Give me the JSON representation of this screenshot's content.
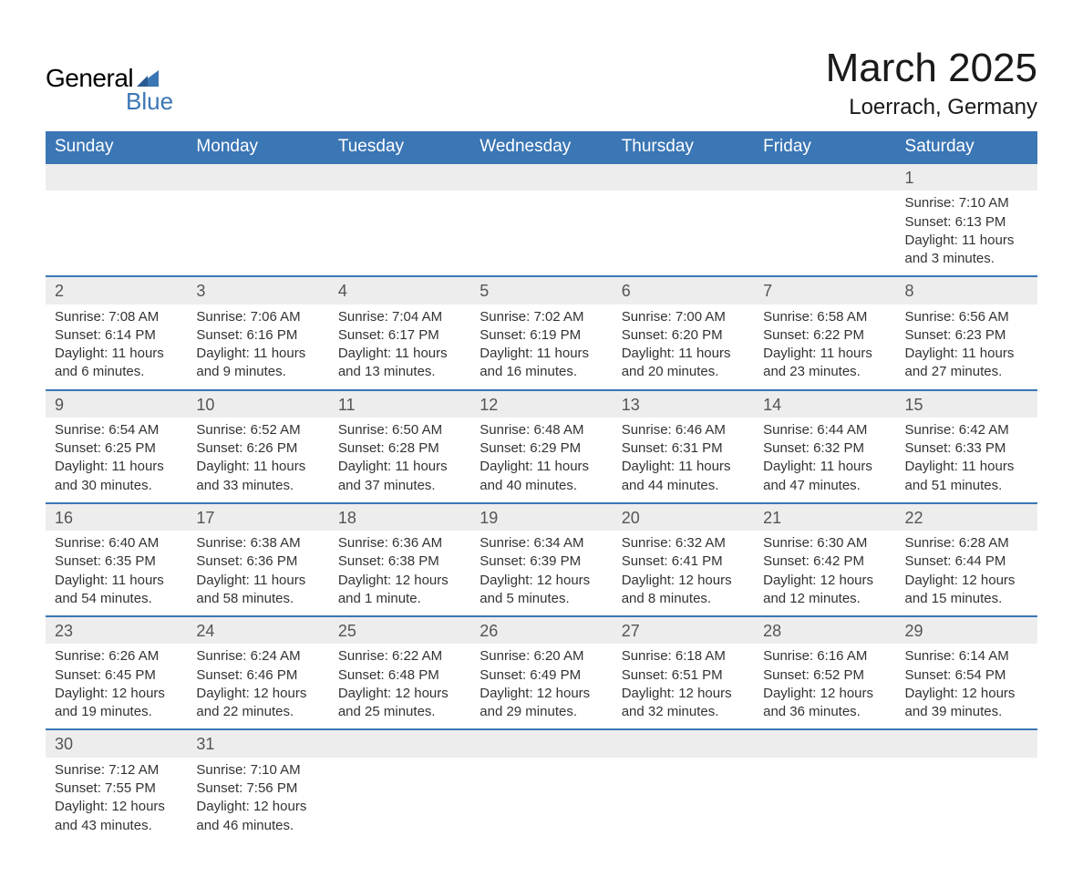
{
  "logo": {
    "general": "General",
    "blue": "Blue",
    "flag_color": "#3b76b5"
  },
  "title": "March 2025",
  "location": "Loerrach, Germany",
  "colors": {
    "header_bg": "#3b76b5",
    "header_text": "#ffffff",
    "daynum_bg": "#ededed",
    "row_border": "#3b76b5",
    "body_text": "#333333"
  },
  "layout": {
    "columns": 7,
    "day_fontsize": 18,
    "detail_fontsize": 15,
    "header_fontsize": 19,
    "title_fontsize": 44,
    "location_fontsize": 24
  },
  "weekdays": [
    "Sunday",
    "Monday",
    "Tuesday",
    "Wednesday",
    "Thursday",
    "Friday",
    "Saturday"
  ],
  "labels": {
    "sunrise": "Sunrise:",
    "sunset": "Sunset:",
    "daylight": "Daylight:"
  },
  "weeks": [
    [
      null,
      null,
      null,
      null,
      null,
      null,
      {
        "n": "1",
        "sr": "7:10 AM",
        "ss": "6:13 PM",
        "dl": "11 hours and 3 minutes."
      }
    ],
    [
      {
        "n": "2",
        "sr": "7:08 AM",
        "ss": "6:14 PM",
        "dl": "11 hours and 6 minutes."
      },
      {
        "n": "3",
        "sr": "7:06 AM",
        "ss": "6:16 PM",
        "dl": "11 hours and 9 minutes."
      },
      {
        "n": "4",
        "sr": "7:04 AM",
        "ss": "6:17 PM",
        "dl": "11 hours and 13 minutes."
      },
      {
        "n": "5",
        "sr": "7:02 AM",
        "ss": "6:19 PM",
        "dl": "11 hours and 16 minutes."
      },
      {
        "n": "6",
        "sr": "7:00 AM",
        "ss": "6:20 PM",
        "dl": "11 hours and 20 minutes."
      },
      {
        "n": "7",
        "sr": "6:58 AM",
        "ss": "6:22 PM",
        "dl": "11 hours and 23 minutes."
      },
      {
        "n": "8",
        "sr": "6:56 AM",
        "ss": "6:23 PM",
        "dl": "11 hours and 27 minutes."
      }
    ],
    [
      {
        "n": "9",
        "sr": "6:54 AM",
        "ss": "6:25 PM",
        "dl": "11 hours and 30 minutes."
      },
      {
        "n": "10",
        "sr": "6:52 AM",
        "ss": "6:26 PM",
        "dl": "11 hours and 33 minutes."
      },
      {
        "n": "11",
        "sr": "6:50 AM",
        "ss": "6:28 PM",
        "dl": "11 hours and 37 minutes."
      },
      {
        "n": "12",
        "sr": "6:48 AM",
        "ss": "6:29 PM",
        "dl": "11 hours and 40 minutes."
      },
      {
        "n": "13",
        "sr": "6:46 AM",
        "ss": "6:31 PM",
        "dl": "11 hours and 44 minutes."
      },
      {
        "n": "14",
        "sr": "6:44 AM",
        "ss": "6:32 PM",
        "dl": "11 hours and 47 minutes."
      },
      {
        "n": "15",
        "sr": "6:42 AM",
        "ss": "6:33 PM",
        "dl": "11 hours and 51 minutes."
      }
    ],
    [
      {
        "n": "16",
        "sr": "6:40 AM",
        "ss": "6:35 PM",
        "dl": "11 hours and 54 minutes."
      },
      {
        "n": "17",
        "sr": "6:38 AM",
        "ss": "6:36 PM",
        "dl": "11 hours and 58 minutes."
      },
      {
        "n": "18",
        "sr": "6:36 AM",
        "ss": "6:38 PM",
        "dl": "12 hours and 1 minute."
      },
      {
        "n": "19",
        "sr": "6:34 AM",
        "ss": "6:39 PM",
        "dl": "12 hours and 5 minutes."
      },
      {
        "n": "20",
        "sr": "6:32 AM",
        "ss": "6:41 PM",
        "dl": "12 hours and 8 minutes."
      },
      {
        "n": "21",
        "sr": "6:30 AM",
        "ss": "6:42 PM",
        "dl": "12 hours and 12 minutes."
      },
      {
        "n": "22",
        "sr": "6:28 AM",
        "ss": "6:44 PM",
        "dl": "12 hours and 15 minutes."
      }
    ],
    [
      {
        "n": "23",
        "sr": "6:26 AM",
        "ss": "6:45 PM",
        "dl": "12 hours and 19 minutes."
      },
      {
        "n": "24",
        "sr": "6:24 AM",
        "ss": "6:46 PM",
        "dl": "12 hours and 22 minutes."
      },
      {
        "n": "25",
        "sr": "6:22 AM",
        "ss": "6:48 PM",
        "dl": "12 hours and 25 minutes."
      },
      {
        "n": "26",
        "sr": "6:20 AM",
        "ss": "6:49 PM",
        "dl": "12 hours and 29 minutes."
      },
      {
        "n": "27",
        "sr": "6:18 AM",
        "ss": "6:51 PM",
        "dl": "12 hours and 32 minutes."
      },
      {
        "n": "28",
        "sr": "6:16 AM",
        "ss": "6:52 PM",
        "dl": "12 hours and 36 minutes."
      },
      {
        "n": "29",
        "sr": "6:14 AM",
        "ss": "6:54 PM",
        "dl": "12 hours and 39 minutes."
      }
    ],
    [
      {
        "n": "30",
        "sr": "7:12 AM",
        "ss": "7:55 PM",
        "dl": "12 hours and 43 minutes."
      },
      {
        "n": "31",
        "sr": "7:10 AM",
        "ss": "7:56 PM",
        "dl": "12 hours and 46 minutes."
      },
      null,
      null,
      null,
      null,
      null
    ]
  ]
}
